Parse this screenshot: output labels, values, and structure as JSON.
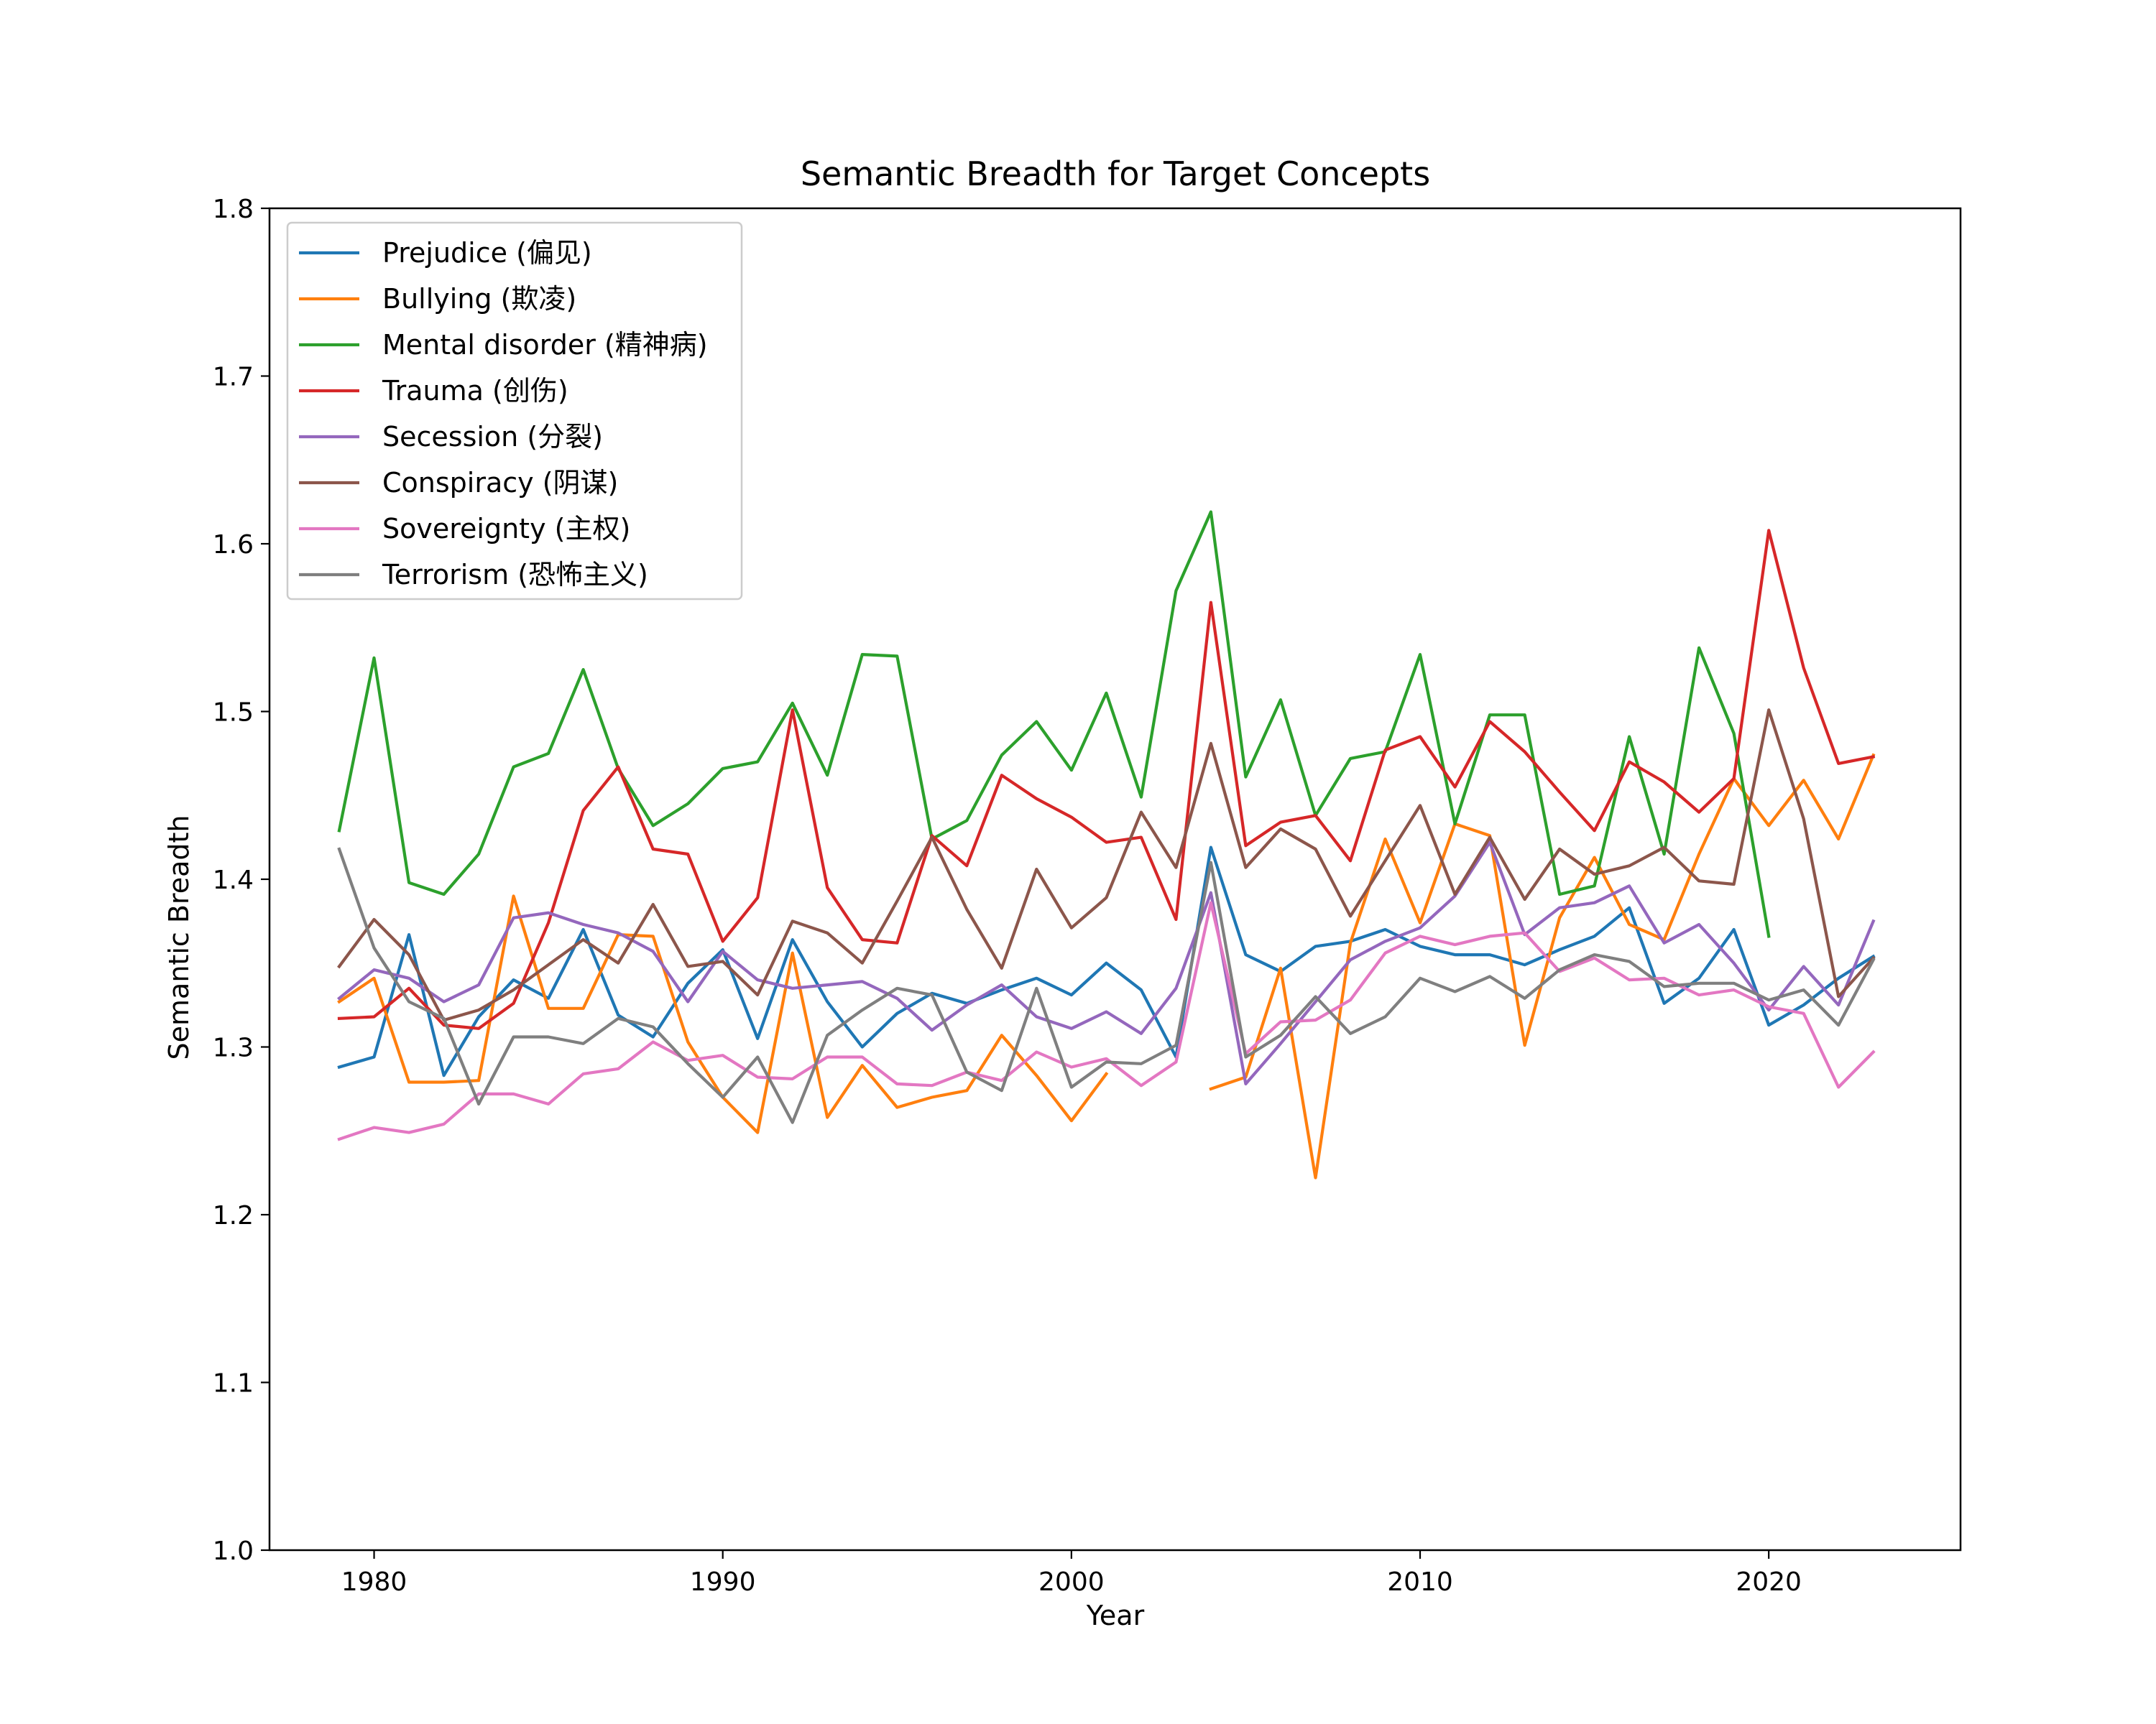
{
  "chart_data": {
    "type": "line",
    "title": "Semantic Breadth for Target Concepts",
    "xlabel": "Year",
    "ylabel": "Semantic Breadth",
    "xlim": [
      1977,
      2025.5
    ],
    "ylim": [
      1.0,
      1.8
    ],
    "xticks": [
      "1980",
      "1990",
      "2000",
      "2010",
      "2020"
    ],
    "yticks": [
      "1.0",
      "1.1",
      "1.2",
      "1.3",
      "1.4",
      "1.5",
      "1.6",
      "1.7",
      "1.8"
    ],
    "legend_position": "upper-left",
    "grid": false,
    "years": [
      1979,
      1980,
      1981,
      1982,
      1983,
      1984,
      1985,
      1986,
      1987,
      1988,
      1989,
      1990,
      1991,
      1992,
      1993,
      1994,
      1995,
      1996,
      1997,
      1998,
      1999,
      2000,
      2001,
      2002,
      2003,
      2004,
      2005,
      2006,
      2007,
      2008,
      2009,
      2010,
      2011,
      2012,
      2013,
      2014,
      2015,
      2016,
      2017,
      2018,
      2019,
      2020,
      2021,
      2022,
      2023
    ],
    "series": [
      {
        "name": "Prejudice (偏见)",
        "color": "#1f77b4",
        "values": [
          1.288,
          1.294,
          1.367,
          1.283,
          1.318,
          1.34,
          1.329,
          1.37,
          1.319,
          1.306,
          1.338,
          1.358,
          1.305,
          1.364,
          1.327,
          1.3,
          1.32,
          1.332,
          1.326,
          1.334,
          1.341,
          1.331,
          1.35,
          1.334,
          1.294,
          1.419,
          1.355,
          1.345,
          1.36,
          1.363,
          1.37,
          1.36,
          1.355,
          1.355,
          1.349,
          1.358,
          1.366,
          1.383,
          1.326,
          1.341,
          1.37,
          1.313,
          1.325,
          1.341,
          1.354
        ]
      },
      {
        "name": "Bullying (欺凌)",
        "color": "#ff7f0e",
        "values": [
          1.327,
          1.341,
          1.279,
          1.279,
          1.28,
          1.39,
          1.323,
          1.323,
          1.367,
          1.366,
          1.303,
          1.27,
          1.249,
          1.356,
          1.258,
          1.289,
          1.264,
          1.27,
          1.274,
          1.307,
          1.283,
          1.256,
          1.284,
          null,
          null,
          1.275,
          1.282,
          1.347,
          1.222,
          1.362,
          1.424,
          1.374,
          1.433,
          1.426,
          1.301,
          1.377,
          1.413,
          1.373,
          1.364,
          1.415,
          1.46,
          1.432,
          1.459,
          1.424,
          1.474
        ]
      },
      {
        "name": "Mental disorder (精神病)",
        "color": "#2ca02c",
        "values": [
          1.429,
          1.532,
          1.398,
          1.391,
          1.415,
          1.467,
          1.475,
          1.525,
          1.466,
          1.432,
          1.445,
          1.466,
          1.47,
          1.505,
          1.462,
          1.534,
          1.533,
          1.424,
          1.435,
          1.474,
          1.494,
          1.465,
          1.511,
          1.449,
          1.572,
          1.619,
          1.461,
          1.507,
          1.438,
          1.472,
          1.476,
          1.534,
          1.433,
          1.498,
          1.498,
          1.391,
          1.396,
          1.485,
          1.415,
          1.538,
          1.487,
          1.366,
          null,
          null,
          null
        ]
      },
      {
        "name": "Trauma (创伤)",
        "color": "#d62728",
        "values": [
          1.317,
          1.318,
          1.335,
          1.313,
          1.311,
          1.326,
          1.374,
          1.441,
          1.467,
          1.418,
          1.415,
          1.363,
          1.389,
          1.501,
          1.395,
          1.364,
          1.362,
          1.426,
          1.408,
          1.462,
          1.448,
          1.437,
          1.422,
          1.425,
          1.376,
          1.565,
          1.42,
          1.434,
          1.438,
          1.411,
          1.477,
          1.485,
          1.455,
          1.494,
          1.476,
          1.452,
          1.429,
          1.47,
          1.458,
          1.44,
          1.46,
          1.608,
          1.526,
          1.469,
          1.473
        ]
      },
      {
        "name": "Secession (分裂)",
        "color": "#9467bd",
        "values": [
          1.329,
          1.346,
          1.341,
          1.327,
          1.337,
          1.377,
          1.38,
          1.373,
          1.368,
          1.357,
          1.327,
          1.357,
          1.34,
          1.335,
          1.337,
          1.339,
          1.329,
          1.31,
          1.325,
          1.337,
          1.318,
          1.311,
          1.321,
          1.308,
          1.335,
          1.392,
          1.278,
          1.302,
          1.327,
          1.352,
          1.363,
          1.371,
          1.39,
          1.422,
          1.367,
          1.383,
          1.386,
          1.396,
          1.362,
          1.373,
          1.35,
          1.322,
          1.348,
          1.325,
          1.375
        ]
      },
      {
        "name": "Conspiracy (阴谋)",
        "color": "#8c564b",
        "values": [
          1.348,
          1.376,
          1.355,
          1.316,
          1.322,
          1.334,
          1.349,
          1.364,
          1.35,
          1.385,
          1.348,
          1.351,
          1.331,
          1.375,
          1.368,
          1.35,
          1.387,
          1.425,
          1.382,
          1.347,
          1.406,
          1.371,
          1.389,
          1.44,
          1.407,
          1.481,
          1.407,
          1.43,
          1.418,
          1.378,
          1.411,
          1.444,
          1.391,
          1.425,
          1.388,
          1.418,
          1.403,
          1.408,
          1.419,
          1.399,
          1.397,
          1.501,
          1.436,
          1.33,
          1.353
        ]
      },
      {
        "name": "Sovereignty (主权)",
        "color": "#e377c2",
        "values": [
          1.245,
          1.252,
          1.249,
          1.254,
          1.272,
          1.272,
          1.266,
          1.284,
          1.287,
          1.303,
          1.292,
          1.295,
          1.282,
          1.281,
          1.294,
          1.294,
          1.278,
          1.277,
          1.285,
          1.28,
          1.297,
          1.288,
          1.293,
          1.277,
          1.291,
          1.386,
          1.296,
          1.315,
          1.316,
          1.328,
          1.356,
          1.366,
          1.361,
          1.366,
          1.368,
          1.345,
          1.353,
          1.34,
          1.341,
          1.331,
          1.334,
          1.324,
          1.32,
          1.276,
          1.297
        ]
      },
      {
        "name": "Terrorism (恐怖主义)",
        "color": "#7f7f7f",
        "values": [
          1.418,
          1.359,
          1.327,
          1.317,
          1.266,
          1.306,
          1.306,
          1.302,
          1.317,
          1.312,
          1.29,
          1.27,
          1.294,
          1.255,
          1.307,
          1.322,
          1.335,
          1.331,
          1.285,
          1.274,
          1.335,
          1.276,
          1.291,
          1.29,
          1.301,
          1.41,
          1.294,
          1.307,
          1.33,
          1.308,
          1.318,
          1.341,
          1.333,
          1.342,
          1.329,
          1.346,
          1.355,
          1.351,
          1.336,
          1.338,
          1.338,
          1.328,
          1.334,
          1.313,
          1.352
        ]
      }
    ]
  }
}
